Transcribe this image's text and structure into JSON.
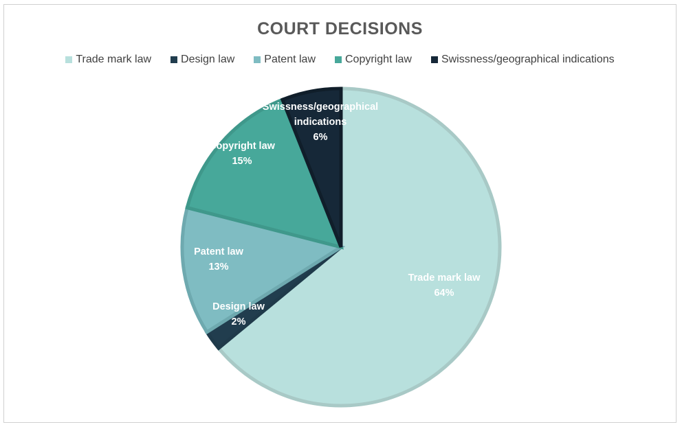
{
  "chart_data": {
    "type": "pie",
    "title": "COURT DECISIONS",
    "legend_position": "top",
    "slices": [
      {
        "name": "Trade mark law",
        "value": 64,
        "label": "64%",
        "color": "#b8e0dd",
        "border": "#a8c9c6",
        "label_lines": [
          "Trade mark law",
          "64%"
        ]
      },
      {
        "name": "Design law",
        "value": 2,
        "label": "2%",
        "color": "#213d4e",
        "border": "#1f3a4a",
        "label_lines": [
          "Design law",
          "2%"
        ]
      },
      {
        "name": "Patent law",
        "value": 13,
        "label": "13%",
        "color": "#7fbcc2",
        "border": "#6ea9af",
        "label_lines": [
          "Patent law",
          "13%"
        ]
      },
      {
        "name": "Copyright law",
        "value": 15,
        "label": "15%",
        "color": "#47a89a",
        "border": "#3f988b",
        "label_lines": [
          "Copyright law",
          "15%"
        ]
      },
      {
        "name": "Swissness/geographical indications",
        "value": 6,
        "label": "6%",
        "color": "#162838",
        "border": "#101e2a",
        "label_lines": [
          "Swissness/geographical",
          "indications",
          "6%"
        ]
      }
    ]
  }
}
